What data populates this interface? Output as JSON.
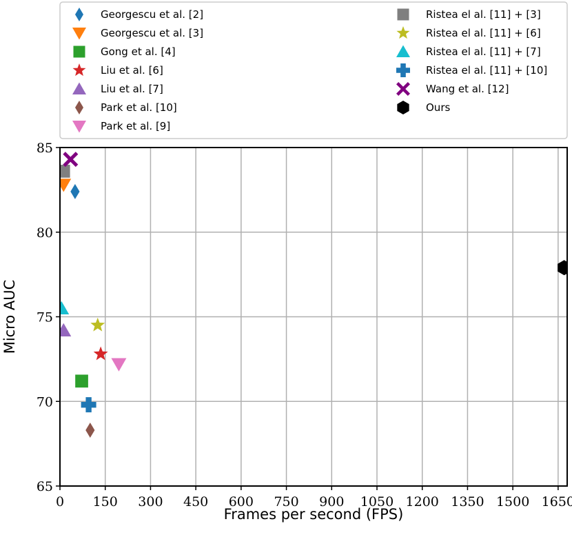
{
  "chart_data": {
    "type": "scatter",
    "xlabel": "Frames per second (FPS)",
    "ylabel": "Micro AUC",
    "xlim": [
      0,
      1680
    ],
    "ylim": [
      65,
      85
    ],
    "xticks": [
      0,
      150,
      300,
      450,
      600,
      750,
      900,
      1050,
      1200,
      1350,
      1500,
      1650
    ],
    "yticks": [
      65,
      70,
      75,
      80,
      85
    ],
    "grid": true,
    "legend_position": "top",
    "series": [
      {
        "name": "Georgescu et al. [2]",
        "marker": "thin_diamond",
        "color": "#1f77b4",
        "x": 50,
        "y": 82.4
      },
      {
        "name": "Georgescu et al. [3]",
        "marker": "triangle_down",
        "color": "#ff7f0e",
        "x": 12,
        "y": 82.8
      },
      {
        "name": "Gong et al. [4]",
        "marker": "square",
        "color": "#2ca02c",
        "x": 72,
        "y": 71.2
      },
      {
        "name": "Liu et al. [6]",
        "marker": "star",
        "color": "#d62728",
        "x": 135,
        "y": 72.8
      },
      {
        "name": "Liu et al. [7]",
        "marker": "triangle_up",
        "color": "#9467bd",
        "x": 12,
        "y": 74.2
      },
      {
        "name": "Park et al. [10]",
        "marker": "thin_diamond",
        "color": "#8c564b",
        "x": 100,
        "y": 68.3
      },
      {
        "name": "Park et al. [9]",
        "marker": "triangle_down",
        "color": "#e377c2",
        "x": 195,
        "y": 72.2
      },
      {
        "name": "Ristea el al. [11] + [3]",
        "marker": "square",
        "color": "#7f7f7f",
        "x": 12,
        "y": 83.6
      },
      {
        "name": "Ristea el al. [11] + [6]",
        "marker": "star",
        "color": "#bcbd22",
        "x": 125,
        "y": 74.5
      },
      {
        "name": "Ristea el al. [11] + [7]",
        "marker": "triangle_up",
        "color": "#17becf",
        "x": 5,
        "y": 75.5
      },
      {
        "name": "Ristea el al. [11] + [10]",
        "marker": "plus",
        "color": "#1f77b4",
        "x": 95,
        "y": 69.8
      },
      {
        "name": "Wang et al. [12]",
        "marker": "x",
        "color": "#800080",
        "x": 35,
        "y": 84.3
      },
      {
        "name": "Ours",
        "marker": "hexagon",
        "color": "#000000",
        "x": 1670,
        "y": 77.9
      }
    ]
  }
}
